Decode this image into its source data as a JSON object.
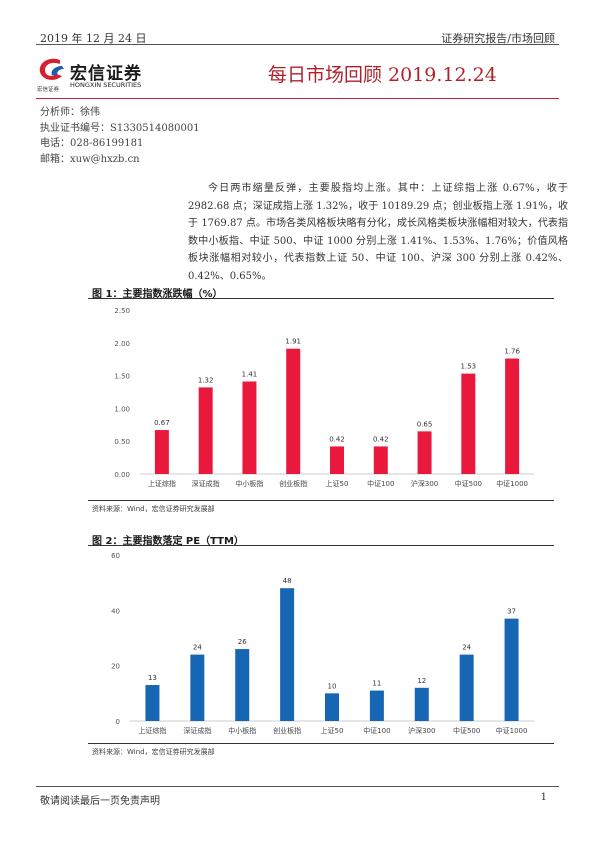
{
  "header": {
    "date": "2019 年 12 月 24 日",
    "category": "证券研究报告/市场回顾"
  },
  "logo": {
    "name_cn": "宏信证券",
    "name_small": "宏信证券",
    "name_en": "HONGXIN SECURITIES",
    "colors": {
      "red": "#d42030",
      "blue": "#1d5fae"
    }
  },
  "doc_title": "每日市场回顾 2019.12.24",
  "analyst": {
    "name": "分析师：徐伟",
    "license": "执业证书编号：S1330514080001",
    "phone": "电话：028-86199181",
    "email": "邮箱：xuw@hxzb.cn"
  },
  "summary": "今日两市缩量反弹，主要股指均上涨。其中：上证综指上涨 0.67%，收于 2982.68 点；深证成指上涨 1.32%，收于 10189.29 点；创业板指上涨 1.91%，收于 1769.87 点。市场各类风格板块略有分化，成长风格类板块涨幅相对较大，代表指数中小板指、中证 500、中证 1000 分别上涨 1.41%、1.53%、1.76%；价值风格板块涨幅相对较小，代表指数上证 50、中证 100、沪深 300 分别上涨 0.42%、0.42%、0.65%。",
  "figures": {
    "fig1": {
      "title": "图 1：主要指数涨跌幅（%）",
      "source": "资料来源：Wind，宏信证券研究发展部"
    },
    "fig2": {
      "title": "图 2：主要指数落定 PE（TTM）",
      "source": "资料来源：Wind，宏信证券研究发展部"
    }
  },
  "chart_data": [
    {
      "type": "bar",
      "categories": [
        "上证综指",
        "深证成指",
        "中小板指",
        "创业板指",
        "上证50",
        "中证100",
        "沪深300",
        "中证500",
        "中证1000"
      ],
      "values": [
        0.67,
        1.32,
        1.41,
        1.91,
        0.42,
        0.42,
        0.65,
        1.53,
        1.76
      ],
      "labels": [
        "0.67",
        "1.32",
        "1.41",
        "1.91",
        "0.42",
        "0.42",
        "0.65",
        "1.53",
        "1.76"
      ],
      "yticks": [
        "0.00",
        "0.50",
        "1.00",
        "1.50",
        "2.00",
        "2.50"
      ],
      "ylim": [
        0,
        2.5
      ],
      "color": "#e8193c",
      "grid": false
    },
    {
      "type": "bar",
      "categories": [
        "上证综指",
        "深证成指",
        "中小板指",
        "创业板指",
        "上证50",
        "中证100",
        "沪深300",
        "中证500",
        "中证1000"
      ],
      "values": [
        13,
        24,
        26,
        48,
        10,
        11,
        12,
        24,
        37
      ],
      "labels": [
        "13",
        "24",
        "26",
        "48",
        "10",
        "11",
        "12",
        "24",
        "37"
      ],
      "yticks": [
        "0",
        "20",
        "40",
        "60"
      ],
      "ylim": [
        0,
        60
      ],
      "color": "#1766b4",
      "grid": false
    }
  ],
  "footer": {
    "disclaimer": "敬请阅读最后一页免责声明",
    "page": "1"
  }
}
